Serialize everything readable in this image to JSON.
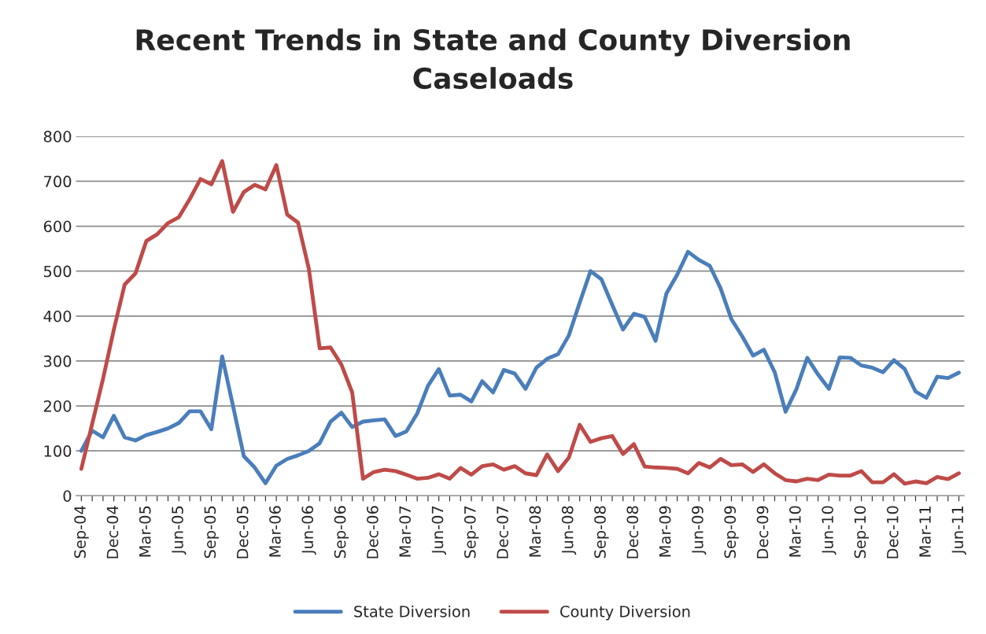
{
  "chart_data": {
    "type": "line",
    "title": "Recent Trends in State and County Diversion\nCaseloads",
    "categories": [
      "Sep-04",
      null,
      null,
      "Dec-04",
      null,
      null,
      "Mar-05",
      null,
      null,
      "Jun-05",
      null,
      null,
      "Sep-05",
      null,
      null,
      "Dec-05",
      null,
      null,
      "Mar-06",
      null,
      null,
      "Jun-06",
      null,
      null,
      "Sep-06",
      null,
      null,
      "Dec-06",
      null,
      null,
      "Mar-07",
      null,
      null,
      "Jun-07",
      null,
      null,
      "Sep-07",
      null,
      null,
      "Dec-07",
      null,
      null,
      "Mar-08",
      null,
      null,
      "Jun-08",
      null,
      null,
      "Sep-08",
      null,
      null,
      "Dec-08",
      null,
      null,
      "Mar-09",
      null,
      null,
      "Jun-09",
      null,
      null,
      "Sep-09",
      null,
      null,
      "Dec-09",
      null,
      null,
      "Mar-10",
      null,
      null,
      "Jun-10",
      null,
      null,
      "Sep-10",
      null,
      null,
      "Dec-10",
      null,
      null,
      "Mar-11",
      null,
      null,
      "Jun-11"
    ],
    "series": [
      {
        "name": "State Diversion",
        "color": "#4a7ebb",
        "values": [
          100,
          145,
          130,
          178,
          130,
          123,
          135,
          142,
          150,
          162,
          188,
          188,
          148,
          310,
          200,
          88,
          63,
          28,
          67,
          82,
          90,
          100,
          117,
          165,
          185,
          153,
          165,
          168,
          170,
          133,
          143,
          183,
          245,
          282,
          223,
          225,
          210,
          255,
          230,
          280,
          272,
          238,
          285,
          305,
          315,
          357,
          430,
          500,
          482,
          425,
          370,
          405,
          398,
          345,
          450,
          492,
          543,
          525,
          512,
          462,
          393,
          355,
          312,
          325,
          275,
          187,
          237,
          307,
          270,
          238,
          308,
          307,
          290,
          285,
          275,
          302,
          282,
          232,
          218,
          265,
          262,
          274
        ]
      },
      {
        "name": "County Diversion",
        "color": "#be4b48",
        "values": [
          60,
          160,
          260,
          370,
          470,
          495,
          567,
          582,
          607,
          620,
          660,
          705,
          693,
          745,
          632,
          676,
          692,
          682,
          736,
          626,
          608,
          505,
          328,
          330,
          292,
          230,
          38,
          53,
          58,
          55,
          47,
          38,
          40,
          48,
          38,
          62,
          47,
          66,
          70,
          58,
          66,
          50,
          46,
          92,
          55,
          85,
          158,
          120,
          128,
          133,
          93,
          115,
          65,
          63,
          62,
          60,
          50,
          73,
          63,
          82,
          68,
          70,
          53,
          70,
          50,
          35,
          32,
          38,
          35,
          47,
          45,
          45,
          55,
          30,
          30,
          48,
          27,
          32,
          28,
          42,
          37,
          50
        ]
      }
    ],
    "ylim": [
      0,
      800
    ],
    "yticks": [
      0,
      100,
      200,
      300,
      400,
      500,
      600,
      700,
      800
    ],
    "grid": "y",
    "legend": "bottom",
    "marker": "none",
    "line_style": "solid"
  }
}
